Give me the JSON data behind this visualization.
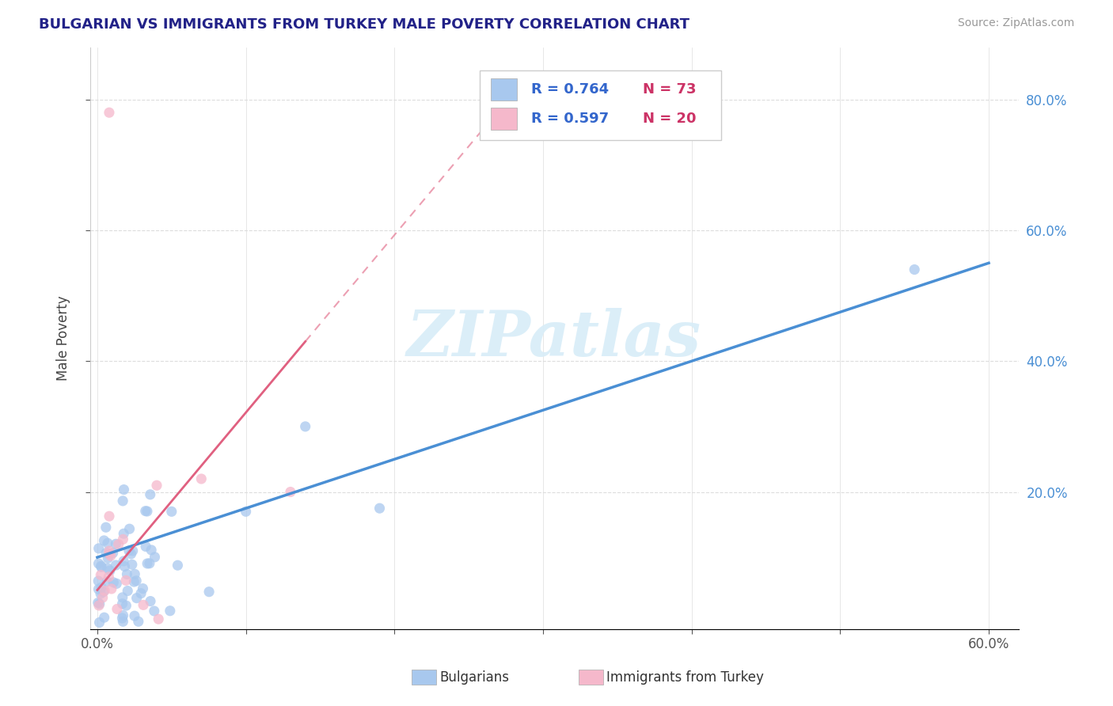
{
  "title": "BULGARIAN VS IMMIGRANTS FROM TURKEY MALE POVERTY CORRELATION CHART",
  "source": "Source: ZipAtlas.com",
  "ylabel": "Male Poverty",
  "yaxis_ticks_right": [
    "20.0%",
    "40.0%",
    "60.0%",
    "80.0%"
  ],
  "yaxis_tick_vals": [
    0.2,
    0.4,
    0.6,
    0.8
  ],
  "xlim": [
    -0.005,
    0.62
  ],
  "ylim": [
    -0.01,
    0.88
  ],
  "legend1_r": "R = 0.764",
  "legend1_n": "N = 73",
  "legend2_r": "R = 0.597",
  "legend2_n": "N = 20",
  "color_bulgarian": "#a8c8ee",
  "color_turkey": "#f5b8cb",
  "color_blue_line": "#4a8fd4",
  "color_pink_line": "#e06080",
  "watermark_color": "#d8edf8",
  "bg_color": "#ffffff",
  "grid_color": "#dddddd"
}
